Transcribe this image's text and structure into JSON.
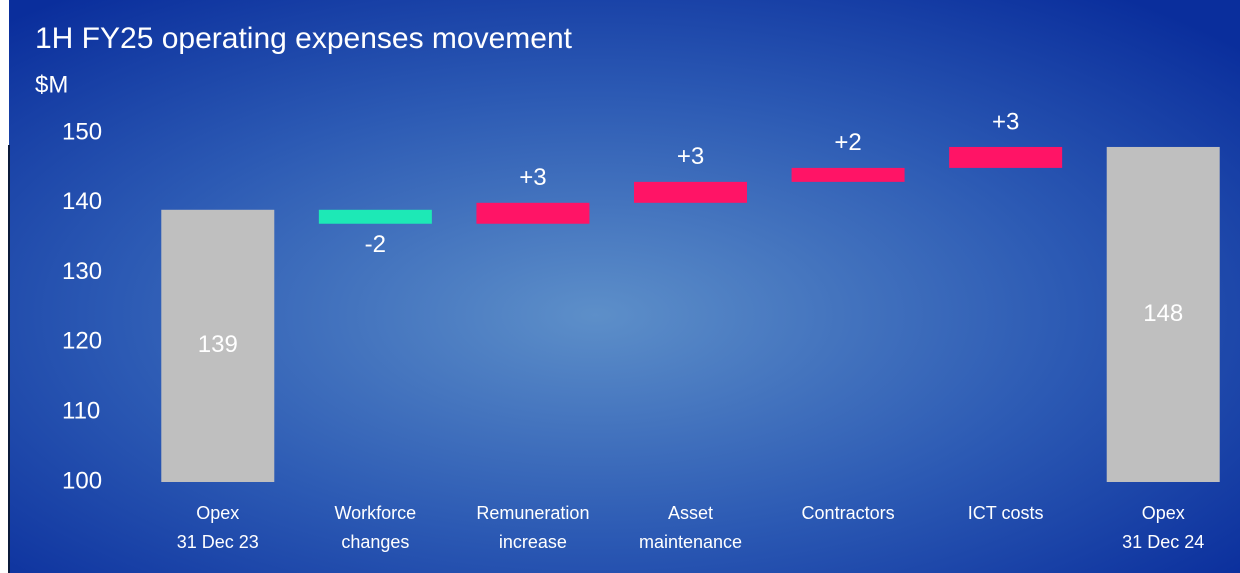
{
  "chart_data": {
    "type": "waterfall",
    "title": "1H FY25 operating expenses movement",
    "y_label": "$M",
    "categories": [
      [
        "Opex",
        "31 Dec 23"
      ],
      [
        "Workforce",
        "changes"
      ],
      [
        "Remuneration",
        "increase"
      ],
      [
        "Asset",
        "maintenance"
      ],
      [
        "Contractors"
      ],
      [
        "ICT costs"
      ],
      [
        "Opex",
        "31 Dec 24"
      ]
    ],
    "values": [
      139,
      -2,
      3,
      3,
      2,
      3,
      148
    ],
    "value_labels": [
      "139",
      "-2",
      "+3",
      "+3",
      "+2",
      "+3",
      "148"
    ],
    "measure": [
      "absolute",
      "relative",
      "relative",
      "relative",
      "relative",
      "relative",
      "absolute"
    ],
    "total_color": "#bfbfbf",
    "increase_color": "#ff1466",
    "decrease_color": "#1de9b6",
    "ylim": [
      100,
      150
    ],
    "yticks": [
      100,
      110,
      120,
      130,
      140,
      150
    ],
    "grid": false
  }
}
